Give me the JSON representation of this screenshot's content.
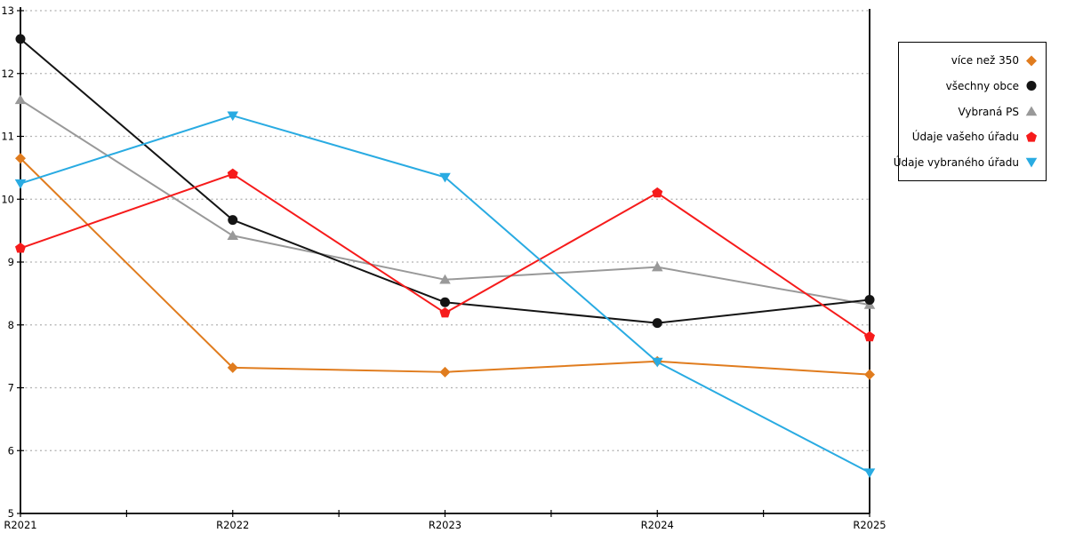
{
  "chart_data": {
    "type": "line",
    "title": "",
    "xlabel": "",
    "ylabel": "",
    "categories": [
      "R2021",
      "R2022",
      "R2023",
      "R2024",
      "R2025"
    ],
    "series": [
      {
        "name": "více než 350",
        "marker": "diamond",
        "color": "#e07c1e",
        "values": [
          10.65,
          7.32,
          7.25,
          7.42,
          7.21
        ]
      },
      {
        "name": "všechny obce",
        "marker": "circle",
        "color": "#141414",
        "values": [
          12.55,
          9.67,
          8.36,
          8.03,
          8.4
        ]
      },
      {
        "name": "Vybraná PS",
        "marker": "triangle-up",
        "color": "#999999",
        "values": [
          11.58,
          9.42,
          8.72,
          8.92,
          8.32
        ]
      },
      {
        "name": "Údaje vašeho úřadu",
        "marker": "pentagon",
        "color": "#f61b1b",
        "values": [
          9.22,
          10.4,
          8.19,
          10.1,
          7.81
        ]
      },
      {
        "name": "Údaje vybraného úřadu",
        "marker": "triangle-down",
        "color": "#29abe2",
        "values": [
          10.25,
          11.33,
          10.35,
          7.41,
          5.65
        ]
      }
    ],
    "ylim": [
      5,
      13
    ],
    "yticks": [
      5,
      6,
      7,
      8,
      9,
      10,
      11,
      12,
      13
    ],
    "grid": "horizontal-dotted",
    "legend_position": "right",
    "style": {
      "grid_color": "#b0b0b0",
      "axis_color": "#000000",
      "tick_label_color": "#000000",
      "background": "#ffffff"
    }
  }
}
